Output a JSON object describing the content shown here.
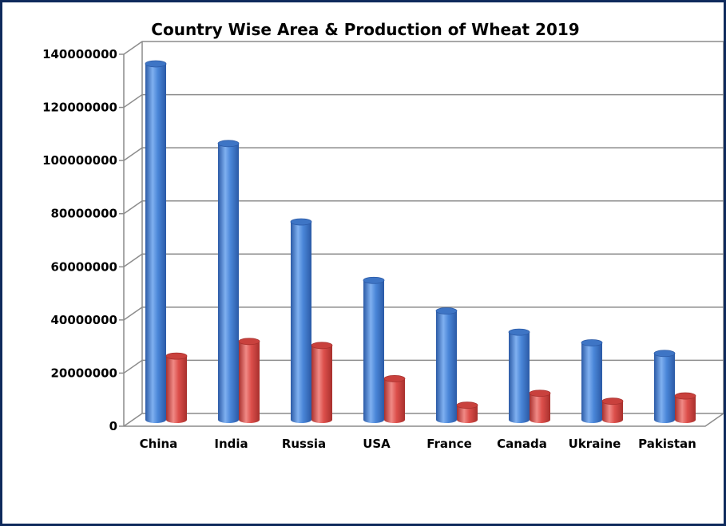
{
  "chart_data": {
    "type": "bar",
    "title": "Country Wise Area & Production of Wheat 2019",
    "xlabel": "",
    "ylabel": "",
    "ylim": [
      0,
      140000000
    ],
    "yticks": [
      "0",
      "20000000",
      "40000000",
      "60000000",
      "80000000",
      "100000000",
      "120000000",
      "140000000"
    ],
    "grid": true,
    "legend": "none",
    "categories": [
      "China",
      "India",
      "Russia",
      "USA",
      "France",
      "Canada",
      "Ukraine",
      "Pakistan"
    ],
    "series": [
      {
        "color": "#4a86d8",
        "values": [
          134000000,
          104000000,
          74500000,
          52500000,
          41000000,
          33000000,
          29000000,
          25000000
        ]
      },
      {
        "color": "#dc4f4b",
        "values": [
          24000000,
          29500000,
          28000000,
          15500000,
          5500000,
          10000000,
          7000000,
          9000000
        ]
      }
    ]
  }
}
